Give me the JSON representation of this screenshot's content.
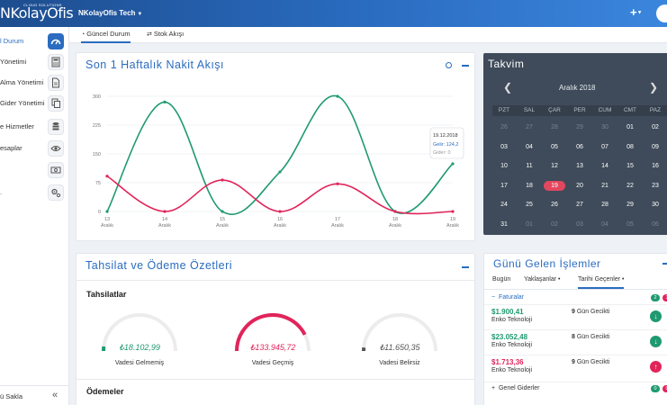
{
  "header": {
    "logo_text": "NKolayOfis",
    "logo_tagline": "CLOUD SOLUTIONS",
    "company": "NKolayOfis Tech",
    "plus": "+"
  },
  "sidebar": {
    "items": [
      {
        "label": "l Durum",
        "icon": "dashboard-icon",
        "active": true
      },
      {
        "label": "Yönetimi",
        "icon": "calculator-icon"
      },
      {
        "label": "Alma Yönetimi",
        "icon": "document-icon"
      },
      {
        "label": "Gider Yönetimi",
        "icon": "copy-icon"
      },
      {
        "label": "e Hizmetler",
        "icon": "database-icon"
      },
      {
        "label": "esaplar",
        "icon": "eye-icon"
      },
      {
        "label": "",
        "icon": "money-icon"
      },
      {
        "label": ".",
        "icon": "settings-icon"
      }
    ],
    "footer_label": "ü Sakla",
    "collapse_glyph": "«"
  },
  "tabs": [
    {
      "label": "Güncel Durum",
      "active": true
    },
    {
      "label": "Stok Akışı",
      "active": false
    }
  ],
  "cash_flow": {
    "title": "Son 1 Haftalık Nakit Akışı",
    "tooltip": {
      "date": "19.12.2018",
      "income": "Gelir: 124,2",
      "expense": "Gider: 0"
    }
  },
  "chart_data": {
    "type": "line",
    "title": "Son 1 Haftalık Nakit Akışı",
    "categories": [
      "13 Aralık",
      "14 Aralık",
      "15 Aralık",
      "16 Aralık",
      "17 Aralık",
      "18 Aralık",
      "19 Aralık"
    ],
    "x_ticks": [
      [
        "13",
        "Aralık"
      ],
      [
        "14",
        "Aralık"
      ],
      [
        "15",
        "Aralık"
      ],
      [
        "16",
        "Aralık"
      ],
      [
        "17",
        "Aralık"
      ],
      [
        "18",
        "Aralık"
      ],
      [
        "19",
        "Aralık"
      ]
    ],
    "y_ticks": [
      "300",
      "225",
      "150",
      "75",
      "0"
    ],
    "ylim": [
      0,
      300
    ],
    "grid": true,
    "series": [
      {
        "name": "Gelir",
        "color": "#1f9a6f",
        "values": [
          0,
          285,
          0,
          103,
          300,
          0,
          124.2
        ]
      },
      {
        "name": "Gider",
        "color": "#e1245a",
        "values": [
          92,
          0,
          82,
          0,
          72,
          0,
          0
        ]
      }
    ]
  },
  "calendar": {
    "title": "Takvim",
    "month": "Aralık 2018",
    "prev": "❮",
    "next": "❯",
    "weekdays": [
      "PZT",
      "SAL",
      "ÇAR",
      "PER",
      "CUM",
      "CMT",
      "PAZ"
    ],
    "weeks": [
      [
        "26",
        "27",
        "28",
        "29",
        "30",
        "01",
        "02"
      ],
      [
        "03",
        "04",
        "05",
        "06",
        "07",
        "08",
        "09"
      ],
      [
        "10",
        "11",
        "12",
        "13",
        "14",
        "15",
        "16"
      ],
      [
        "17",
        "18",
        "19",
        "20",
        "21",
        "22",
        "23"
      ],
      [
        "24",
        "25",
        "26",
        "27",
        "28",
        "29",
        "30"
      ],
      [
        "31",
        "01",
        "02",
        "03",
        "04",
        "05",
        "06"
      ]
    ],
    "today": "19"
  },
  "collections": {
    "title": "Tahsilat ve Ödeme Özetleri",
    "section1": "Tahsilatlar",
    "section2": "Ödemeler",
    "gauges": [
      {
        "amount": "₺18.102,99",
        "label": "Vadesi Gelmemiş",
        "color": "#1f9a6f",
        "fraction": 0.04
      },
      {
        "amount": "₺133.945,72",
        "label": "Vadesi Geçmiş",
        "color": "#e1245a",
        "fraction": 0.85
      },
      {
        "amount": "₺11.650,35",
        "label": "Vadesi Belirsiz",
        "color": "#555555",
        "fraction": 0.03
      }
    ]
  },
  "transactions": {
    "title": "Günü Gelen İşlemler",
    "tabs": [
      "Bugün",
      "Yaklaşanlar •",
      "Tarihi Geçenler •"
    ],
    "group1": {
      "label": "Faturalar",
      "glyph": "−",
      "badge1": "2",
      "badge2": "3"
    },
    "rows": [
      {
        "amount": "$1.900,41",
        "company": "Enko Teknoloji",
        "days": "9",
        "late_text": "Gün Gecikti",
        "color": "#1f9a6f",
        "arrow": "↓"
      },
      {
        "amount": "$23.052,48",
        "company": "Enko Teknoloji",
        "days": "8",
        "late_text": "Gün Gecikti",
        "color": "#1f9a6f",
        "arrow": "↓"
      },
      {
        "amount": "$1.713,36",
        "company": "Enko Teknoloji",
        "days": "9",
        "late_text": "Gün Gecikti",
        "color": "#e1245a",
        "arrow": "↑"
      }
    ],
    "group2": {
      "label": "Genel Giderler",
      "glyph": "+",
      "badge1": "0",
      "badge2": "0"
    }
  }
}
